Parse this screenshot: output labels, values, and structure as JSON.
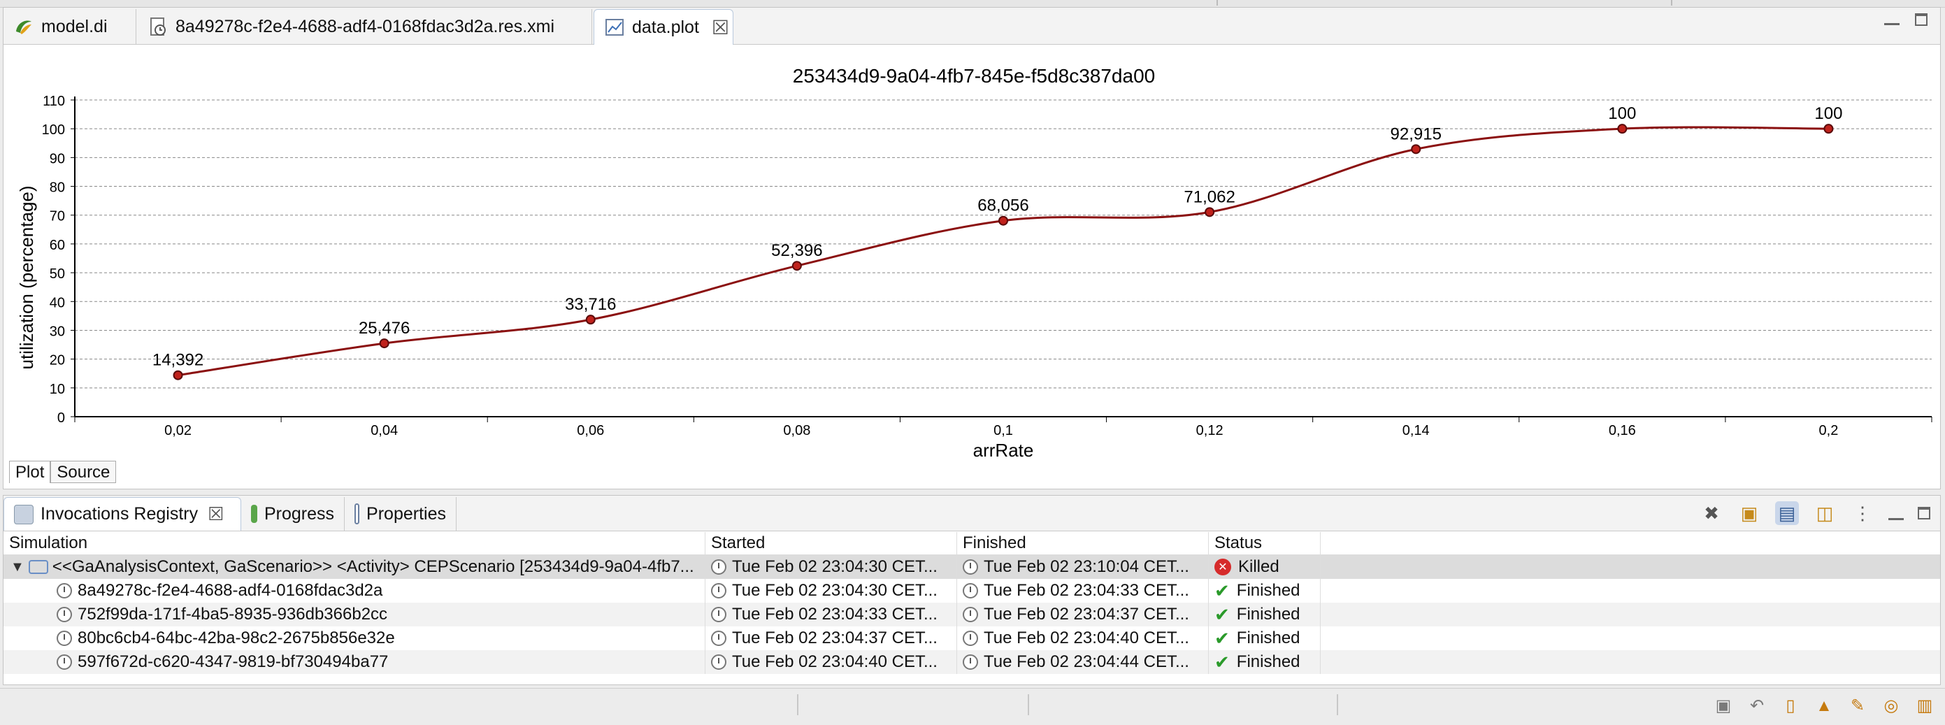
{
  "editor": {
    "tabs": [
      {
        "label": "model.di",
        "icon": "sirius-icon"
      },
      {
        "label": "8a49278c-f2e4-4688-adf4-0168fdac3d2a.res.xmi",
        "icon": "resource-icon"
      },
      {
        "label": "data.plot",
        "icon": "plot-icon",
        "active": true
      }
    ],
    "bottom_tabs": [
      "Plot",
      "Source"
    ]
  },
  "chart_data": {
    "type": "line",
    "title": "253434d9-9a04-4fb7-845e-f5d8c387da00",
    "xlabel": "arrRate",
    "ylabel": "utilization (percentage)",
    "x": [
      0.02,
      0.04,
      0.06,
      0.08,
      0.1,
      0.12,
      0.14,
      0.16,
      0.2
    ],
    "x_tick_labels": [
      "0,02",
      "0,04",
      "0,06",
      "0,08",
      "0,1",
      "0,12",
      "0,14",
      "0,16",
      "0,2"
    ],
    "y": [
      14.392,
      25.476,
      33.716,
      52.396,
      68.056,
      71.062,
      92.915,
      100,
      100
    ],
    "data_labels": [
      "14,392",
      "25,476",
      "33,716",
      "52,396",
      "68,056",
      "71,062",
      "92,915",
      "100",
      "100"
    ],
    "y_ticks": [
      0,
      10,
      20,
      30,
      40,
      50,
      60,
      70,
      80,
      90,
      100,
      110
    ],
    "ylim": [
      0,
      110
    ],
    "grid": "horizontal dashed",
    "colors": {
      "line": "#8b1010",
      "marker": "#c0221c"
    }
  },
  "panel": {
    "tabs": [
      {
        "label": "Invocations Registry",
        "active": true
      },
      {
        "label": "Progress"
      },
      {
        "label": "Properties"
      }
    ],
    "columns": [
      "Simulation",
      "Started",
      "Finished",
      "Status"
    ],
    "rows": [
      {
        "sim": "<<GaAnalysisContext, GaScenario>> <Activity> CEPScenario [253434d9-9a04-4fb7...",
        "started": "Tue Feb 02 23:04:30 CET...",
        "finished": "Tue Feb 02 23:10:04 CET...",
        "status": "Killed"
      },
      {
        "sim": "8a49278c-f2e4-4688-adf4-0168fdac3d2a",
        "started": "Tue Feb 02 23:04:30 CET...",
        "finished": "Tue Feb 02 23:04:33 CET...",
        "status": "Finished"
      },
      {
        "sim": "752f99da-171f-4ba5-8935-936db366b2cc",
        "started": "Tue Feb 02 23:04:33 CET...",
        "finished": "Tue Feb 02 23:04:37 CET...",
        "status": "Finished"
      },
      {
        "sim": "80bc6cb4-64bc-42ba-98c2-2675b856e32e",
        "started": "Tue Feb 02 23:04:37 CET...",
        "finished": "Tue Feb 02 23:04:40 CET...",
        "status": "Finished"
      },
      {
        "sim": "597f672d-c620-4347-9819-bf730494ba77",
        "started": "Tue Feb 02 23:04:40 CET...",
        "finished": "Tue Feb 02 23:04:44 CET...",
        "status": "Finished"
      }
    ]
  }
}
